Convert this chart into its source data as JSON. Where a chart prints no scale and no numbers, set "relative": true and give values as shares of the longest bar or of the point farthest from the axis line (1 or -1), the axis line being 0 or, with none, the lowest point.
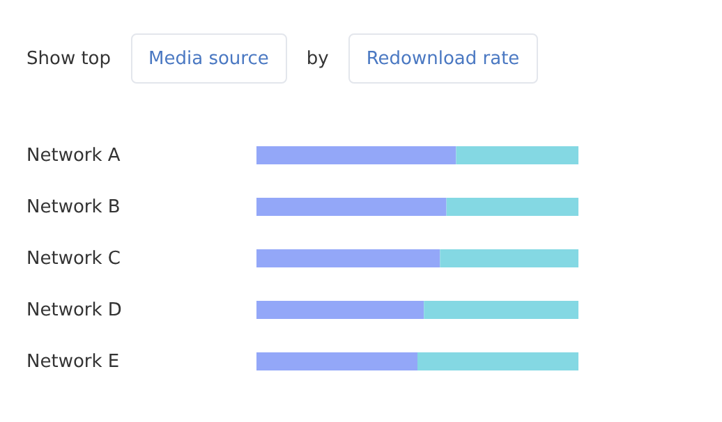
{
  "chart_data": {
    "type": "bar",
    "orientation": "horizontal",
    "stacked": true,
    "relative": true,
    "title": "Show top",
    "annotations": [
      "Media source",
      "by",
      "Redownload rate"
    ],
    "categories": [
      "Network A",
      "Network B",
      "Network C",
      "Network D",
      "Network E"
    ],
    "series": [
      {
        "color": "#93a7f8",
        "values": [
          0.62,
          0.59,
          0.57,
          0.52,
          0.5
        ]
      },
      {
        "color": "#84d8e3",
        "values": [
          0.38,
          0.41,
          0.43,
          0.48,
          0.5
        ]
      }
    ]
  }
}
